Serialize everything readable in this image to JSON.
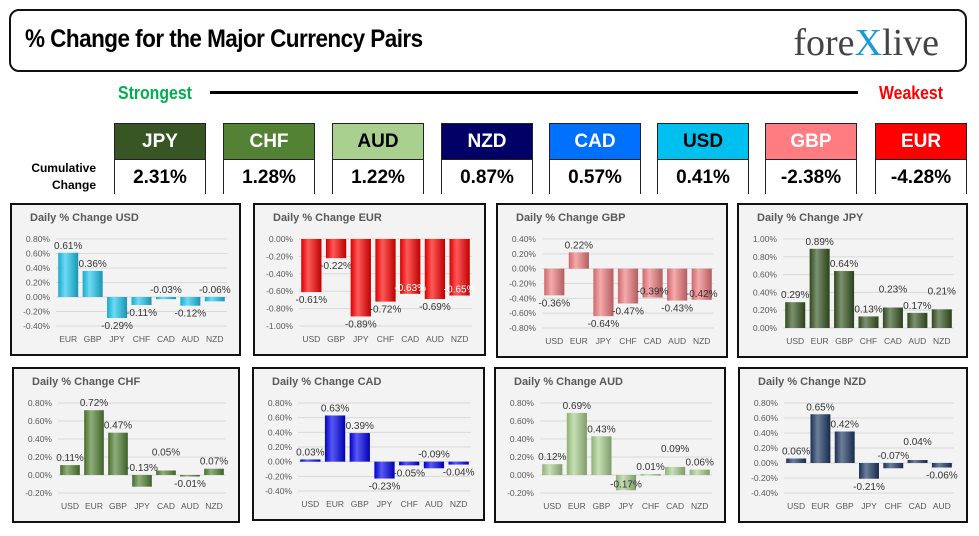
{
  "header": {
    "title": "% Change for the Major Currency Pairs",
    "logo": "forexlive"
  },
  "scale": {
    "strongest_label": "Strongest",
    "weakest_label": "Weakest"
  },
  "cumulative_label": "Cumulative Change",
  "currencies": [
    {
      "code": "JPY",
      "value": "2.31%",
      "color": "#375623",
      "text_color": "#ffffff"
    },
    {
      "code": "CHF",
      "value": "1.28%",
      "color": "#548235",
      "text_color": "#ffffff"
    },
    {
      "code": "AUD",
      "value": "1.22%",
      "color": "#a9d08e",
      "text_color": "#000000"
    },
    {
      "code": "NZD",
      "value": "0.87%",
      "color": "#000066",
      "text_color": "#ffffff"
    },
    {
      "code": "CAD",
      "value": "0.57%",
      "color": "#0070ff",
      "text_color": "#ffffff"
    },
    {
      "code": "USD",
      "value": "0.41%",
      "color": "#00c0f0",
      "text_color": "#000000"
    },
    {
      "code": "GBP",
      "value": "-2.38%",
      "color": "#ff7c80",
      "text_color": "#ffffff"
    },
    {
      "code": "EUR",
      "value": "-4.28%",
      "color": "#ff0000",
      "text_color": "#ffffff"
    }
  ],
  "chart_data": [
    {
      "type": "bar",
      "title": "Daily % Change USD",
      "categories": [
        "EUR",
        "GBP",
        "JPY",
        "CHF",
        "CAD",
        "AUD",
        "NZD"
      ],
      "values": [
        0.61,
        0.36,
        -0.29,
        -0.11,
        -0.03,
        -0.12,
        -0.06
      ],
      "ylim": [
        -0.4,
        0.8
      ],
      "ystep": 0.2,
      "color": "#1ec8f0",
      "grid": true
    },
    {
      "type": "bar",
      "title": "Daily % Change EUR",
      "categories": [
        "USD",
        "GBP",
        "JPY",
        "CHF",
        "CAD",
        "AUD",
        "NZD"
      ],
      "values": [
        -0.61,
        -0.22,
        -0.89,
        -0.72,
        -0.63,
        -0.69,
        -0.65
      ],
      "ylim": [
        -1.0,
        0.0
      ],
      "ystep": 0.2,
      "color": "#ff0000",
      "grid": true
    },
    {
      "type": "bar",
      "title": "Daily % Change GBP",
      "categories": [
        "USD",
        "EUR",
        "JPY",
        "CHF",
        "CAD",
        "AUD",
        "NZD"
      ],
      "values": [
        -0.36,
        0.22,
        -0.64,
        -0.47,
        -0.39,
        -0.43,
        -0.42
      ],
      "ylim": [
        -0.8,
        0.4
      ],
      "ystep": 0.2,
      "color": "#f07c80",
      "grid": true
    },
    {
      "type": "bar",
      "title": "Daily % Change JPY",
      "categories": [
        "USD",
        "EUR",
        "GBP",
        "CHF",
        "CAD",
        "AUD",
        "NZD"
      ],
      "values": [
        0.29,
        0.89,
        0.64,
        0.13,
        0.23,
        0.17,
        0.21
      ],
      "ylim": [
        0.0,
        1.0
      ],
      "ystep": 0.2,
      "color": "#375623",
      "grid": true
    },
    {
      "type": "bar",
      "title": "Daily % Change CHF",
      "categories": [
        "USD",
        "EUR",
        "GBP",
        "JPY",
        "CAD",
        "AUD",
        "NZD"
      ],
      "values": [
        0.11,
        0.72,
        0.47,
        -0.13,
        0.05,
        -0.01,
        0.07
      ],
      "ylim": [
        -0.2,
        0.8
      ],
      "ystep": 0.2,
      "color": "#548235",
      "grid": true
    },
    {
      "type": "bar",
      "title": "Daily % Change CAD",
      "categories": [
        "USD",
        "EUR",
        "GBP",
        "JPY",
        "CHF",
        "AUD",
        "NZD"
      ],
      "values": [
        0.03,
        0.63,
        0.39,
        -0.23,
        -0.05,
        -0.09,
        -0.04
      ],
      "ylim": [
        -0.4,
        0.8
      ],
      "ystep": 0.2,
      "color": "#0000ee",
      "grid": true
    },
    {
      "type": "bar",
      "title": "Daily % Change AUD",
      "categories": [
        "USD",
        "EUR",
        "GBP",
        "JPY",
        "CHF",
        "CAD",
        "NZD"
      ],
      "values": [
        0.12,
        0.69,
        0.43,
        -0.17,
        0.01,
        0.09,
        0.06
      ],
      "ylim": [
        -0.2,
        0.8
      ],
      "ystep": 0.2,
      "color": "#a9d08e",
      "grid": true
    },
    {
      "type": "bar",
      "title": "Daily % Change NZD",
      "categories": [
        "USD",
        "EUR",
        "GBP",
        "JPY",
        "CHF",
        "CAD",
        "AUD"
      ],
      "values": [
        0.06,
        0.65,
        0.42,
        -0.21,
        -0.07,
        0.04,
        -0.06
      ],
      "ylim": [
        -0.4,
        0.8
      ],
      "ystep": 0.2,
      "color": "#1f3864",
      "grid": true
    }
  ]
}
